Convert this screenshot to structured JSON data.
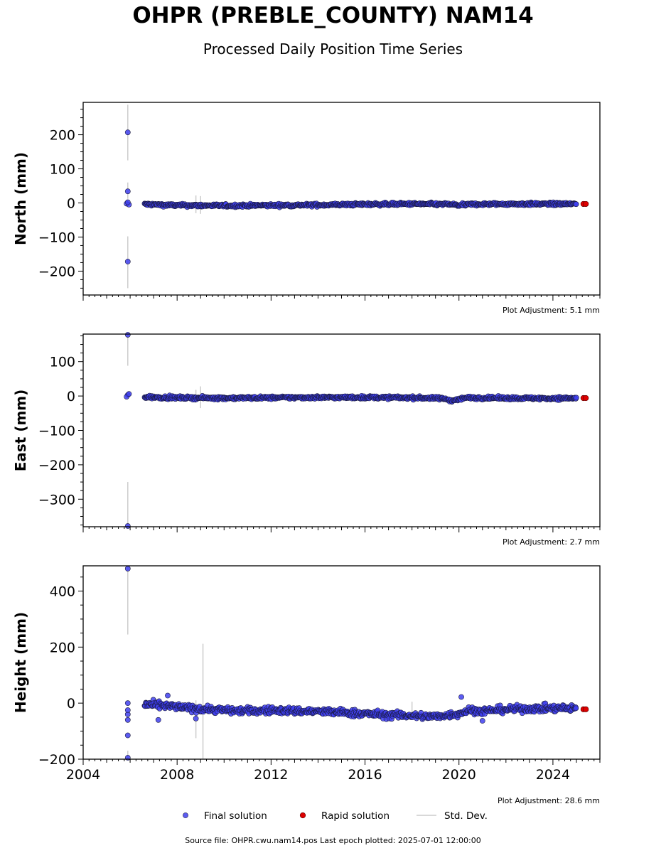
{
  "title": "OHPR (PREBLE_COUNTY) NAM14",
  "subtitle": "Processed Daily Position Time Series",
  "footer": "Source file: OHPR.cwu.nam14.pos  Last epoch plotted: 2025-07-01 12:00:00",
  "colors": {
    "final": "#4040ee",
    "final_edge": "#1a1a40",
    "rapid": "#dd0000",
    "std": "#cccccc",
    "bg": "#ffffff"
  },
  "chart_data": {
    "type": "scatter",
    "x_unit": "year",
    "xlim": [
      2004,
      2026
    ],
    "x_ticks": [
      2004,
      2008,
      2012,
      2016,
      2020,
      2024
    ],
    "legend": {
      "placement": "bottom",
      "entries": [
        "Final solution",
        "Rapid solution",
        "Std. Dev."
      ]
    },
    "panels": [
      {
        "ylabel": "North (mm)",
        "ylim": [
          -270,
          295
        ],
        "y_ticks": [
          -200,
          -100,
          0,
          100,
          200
        ],
        "y_minor_step": 25,
        "adjustment": "Plot Adjustment: 5.1 mm",
        "outliers_final": [
          [
            2005.9,
            207
          ],
          [
            2005.9,
            34
          ],
          [
            2005.9,
            -172
          ],
          [
            2005.85,
            -2
          ],
          [
            2005.95,
            -5
          ],
          [
            2005.9,
            2
          ]
        ],
        "errorbars": [
          [
            2005.9,
            125,
            288
          ],
          [
            2005.9,
            12,
            60
          ],
          [
            2005.9,
            -250,
            -98
          ],
          [
            2008.8,
            -30,
            22
          ],
          [
            2009.0,
            -32,
            20
          ]
        ],
        "trend": [
          [
            2006.6,
            -4
          ],
          [
            2008.0,
            -7
          ],
          [
            2010.0,
            -8
          ],
          [
            2012.0,
            -7
          ],
          [
            2014.0,
            -6
          ],
          [
            2016.0,
            -4
          ],
          [
            2018.0,
            -3
          ],
          [
            2019.6,
            -4
          ],
          [
            2020.0,
            -7
          ],
          [
            2020.5,
            -4
          ],
          [
            2022.0,
            -3
          ],
          [
            2024.0,
            -3
          ],
          [
            2025.0,
            -3
          ]
        ],
        "scatter": 3,
        "rapid": [
          [
            2025.3,
            -3
          ],
          [
            2025.4,
            -3
          ]
        ]
      },
      {
        "ylabel": "East (mm)",
        "ylim": [
          -380,
          180
        ],
        "y_ticks": [
          -300,
          -200,
          -100,
          0,
          100
        ],
        "y_minor_step": 25,
        "adjustment": "Plot Adjustment: 2.7 mm",
        "outliers_final": [
          [
            2005.9,
            178
          ],
          [
            2005.9,
            -378
          ],
          [
            2005.9,
            3
          ],
          [
            2005.85,
            -2
          ],
          [
            2005.95,
            6
          ]
        ],
        "errorbars": [
          [
            2005.9,
            88,
            178
          ],
          [
            2005.9,
            -380,
            -250
          ],
          [
            2009.0,
            -35,
            28
          ],
          [
            2008.8,
            -20,
            18
          ]
        ],
        "trend": [
          [
            2006.6,
            -3
          ],
          [
            2008.0,
            -5
          ],
          [
            2010.0,
            -6
          ],
          [
            2012.0,
            -5
          ],
          [
            2014.0,
            -4
          ],
          [
            2016.0,
            -4
          ],
          [
            2018.0,
            -5
          ],
          [
            2019.3,
            -7
          ],
          [
            2019.7,
            -13
          ],
          [
            2020.0,
            -9
          ],
          [
            2020.3,
            -5
          ],
          [
            2022.0,
            -6
          ],
          [
            2024.0,
            -7
          ],
          [
            2025.0,
            -6
          ]
        ],
        "scatter": 3,
        "rapid": [
          [
            2025.3,
            -6
          ],
          [
            2025.4,
            -6
          ]
        ]
      },
      {
        "ylabel": "Height (mm)",
        "ylim": [
          -200,
          490
        ],
        "y_ticks": [
          -200,
          0,
          200,
          400
        ],
        "y_minor_step": 50,
        "adjustment": "Plot Adjustment: 28.6 mm",
        "outliers_final": [
          [
            2005.9,
            480
          ],
          [
            2005.9,
            -195
          ],
          [
            2005.9,
            -115
          ],
          [
            2005.9,
            -60
          ],
          [
            2005.9,
            -40
          ],
          [
            2005.9,
            -25
          ],
          [
            2005.9,
            0
          ],
          [
            2007.6,
            27
          ],
          [
            2007.2,
            -60
          ],
          [
            2008.8,
            -55
          ],
          [
            2020.1,
            22
          ],
          [
            2021.0,
            -63
          ]
        ],
        "errorbars": [
          [
            2005.9,
            245,
            490
          ],
          [
            2005.9,
            -200,
            -170
          ],
          [
            2009.1,
            -200,
            212
          ],
          [
            2008.8,
            -125,
            10
          ],
          [
            2018.0,
            -50,
            5
          ]
        ],
        "trend": [
          [
            2006.6,
            -5
          ],
          [
            2007.5,
            -10
          ],
          [
            2008.5,
            -18
          ],
          [
            2010.0,
            -25
          ],
          [
            2011.0,
            -28
          ],
          [
            2012.0,
            -25
          ],
          [
            2013.0,
            -28
          ],
          [
            2014.0,
            -30
          ],
          [
            2015.0,
            -33
          ],
          [
            2016.0,
            -38
          ],
          [
            2017.0,
            -42
          ],
          [
            2018.0,
            -45
          ],
          [
            2019.0,
            -48
          ],
          [
            2019.8,
            -40
          ],
          [
            2020.5,
            -25
          ],
          [
            2021.0,
            -28
          ],
          [
            2022.0,
            -22
          ],
          [
            2023.0,
            -20
          ],
          [
            2024.0,
            -18
          ],
          [
            2025.0,
            -20
          ]
        ],
        "scatter": 9,
        "rapid": [
          [
            2025.3,
            -22
          ],
          [
            2025.4,
            -22
          ]
        ]
      }
    ]
  }
}
